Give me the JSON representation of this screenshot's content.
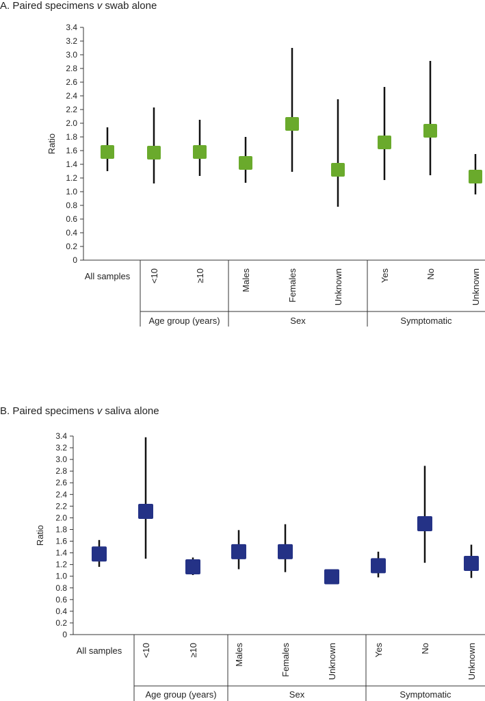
{
  "chart_data": [
    {
      "type": "forest",
      "title_prefix": "A. Paired specimens ",
      "title_italic": "v",
      "title_suffix": " swab alone",
      "ylabel": "Ratio",
      "ylim": [
        0,
        3.4
      ],
      "yticks": [
        "0",
        "0.2",
        "0.4",
        "0.6",
        "0.8",
        "1.0",
        "1.2",
        "1.4",
        "1.6",
        "1.8",
        "2.0",
        "2.2",
        "2.4",
        "2.6",
        "2.8",
        "3.0",
        "3.2",
        "3.4"
      ],
      "marker_color": "#6aaa2c",
      "categories": [
        "All samples",
        "<10",
        "≥10",
        "Males",
        "Females",
        "Unknown",
        "Yes",
        "No",
        "Unknown"
      ],
      "points": [
        {
          "category": "All samples",
          "estimate": 1.58,
          "lower": 1.3,
          "upper": 1.94
        },
        {
          "category": "<10",
          "estimate": 1.57,
          "lower": 1.12,
          "upper": 2.23
        },
        {
          "category": "≥10",
          "estimate": 1.58,
          "lower": 1.23,
          "upper": 2.05
        },
        {
          "category": "Males",
          "estimate": 1.42,
          "lower": 1.13,
          "upper": 1.8
        },
        {
          "category": "Females",
          "estimate": 1.99,
          "lower": 1.29,
          "upper": 3.1
        },
        {
          "category": "Unknown",
          "estimate": 1.32,
          "lower": 0.78,
          "upper": 2.35
        },
        {
          "category": "Yes",
          "estimate": 1.72,
          "lower": 1.17,
          "upper": 2.53
        },
        {
          "category": "No",
          "estimate": 1.89,
          "lower": 1.24,
          "upper": 2.91
        },
        {
          "category": "Unknown",
          "estimate": 1.22,
          "lower": 0.96,
          "upper": 1.55
        }
      ],
      "groups": [
        {
          "label": "Age group (years)",
          "start": 1,
          "end": 2
        },
        {
          "label": "Sex",
          "start": 3,
          "end": 5
        },
        {
          "label": "Symptomatic",
          "start": 6,
          "end": 8
        }
      ]
    },
    {
      "type": "forest",
      "title_prefix": "B. Paired specimens ",
      "title_italic": "v",
      "title_suffix": " saliva alone",
      "ylabel": "Ratio",
      "ylim": [
        0,
        3.4
      ],
      "yticks": [
        "0",
        "0.2",
        "0.4",
        "0.6",
        "0.8",
        "1.0",
        "1.2",
        "1.4",
        "1.6",
        "1.8",
        "2.0",
        "2.2",
        "2.4",
        "2.6",
        "2.8",
        "3.0",
        "3.2",
        "3.4"
      ],
      "marker_color": "#243286",
      "categories": [
        "All samples",
        "<10",
        "≥10",
        "Males",
        "Females",
        "Unknown",
        "Yes",
        "No",
        "Unknown"
      ],
      "points": [
        {
          "category": "All samples",
          "estimate": 1.38,
          "lower": 1.16,
          "upper": 1.62
        },
        {
          "category": "<10",
          "estimate": 2.11,
          "lower": 1.3,
          "upper": 3.38
        },
        {
          "category": "≥10",
          "estimate": 1.16,
          "lower": 1.02,
          "upper": 1.32
        },
        {
          "category": "Males",
          "estimate": 1.42,
          "lower": 1.12,
          "upper": 1.79
        },
        {
          "category": "Females",
          "estimate": 1.42,
          "lower": 1.07,
          "upper": 1.89
        },
        {
          "category": "Unknown",
          "estimate": 0.99,
          "lower": 0.99,
          "upper": 0.99
        },
        {
          "category": "Yes",
          "estimate": 1.18,
          "lower": 0.98,
          "upper": 1.42
        },
        {
          "category": "No",
          "estimate": 1.9,
          "lower": 1.23,
          "upper": 2.89
        },
        {
          "category": "Unknown",
          "estimate": 1.22,
          "lower": 0.97,
          "upper": 1.54
        }
      ],
      "groups": [
        {
          "label": "Age group (years)",
          "start": 1,
          "end": 2
        },
        {
          "label": "Sex",
          "start": 3,
          "end": 5
        },
        {
          "label": "Symptomatic",
          "start": 6,
          "end": 8
        }
      ]
    }
  ]
}
